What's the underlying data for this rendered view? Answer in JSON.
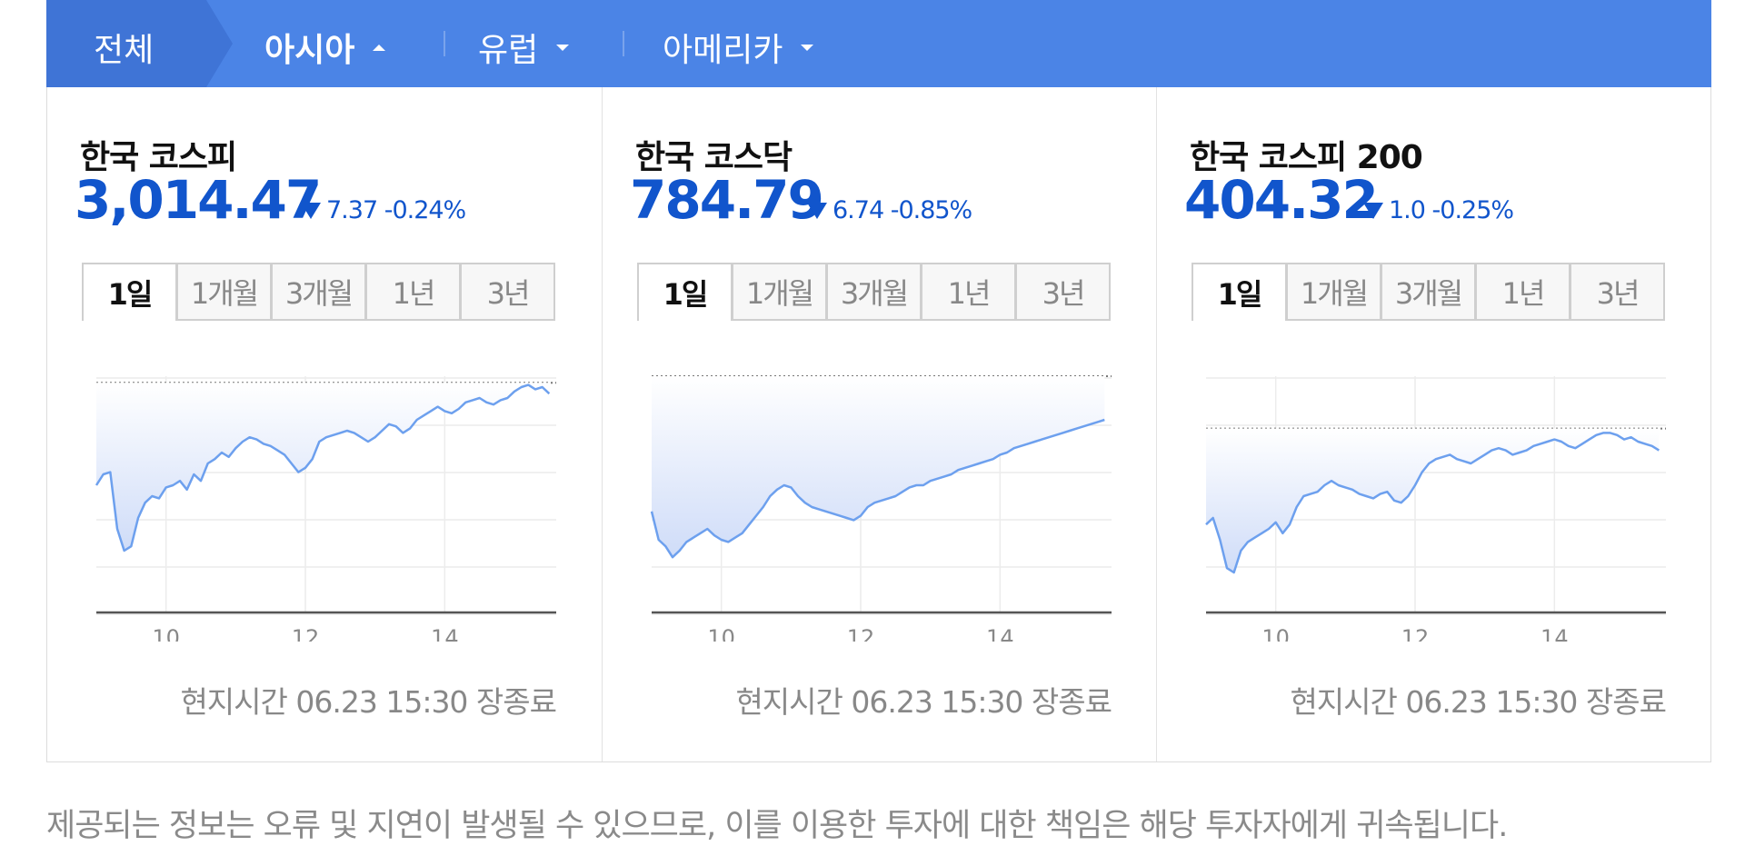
{
  "tabs": {
    "all": "전체",
    "items": [
      {
        "label": "아시아",
        "active": true,
        "caret": "up"
      },
      {
        "label": "유럽",
        "active": false,
        "caret": "down"
      },
      {
        "label": "아메리카",
        "active": false,
        "caret": "down"
      }
    ]
  },
  "colors": {
    "accent": "#4b84e6",
    "value": "#1155cc",
    "line": "#6da0ee"
  },
  "panels": [
    {
      "name": "한국 코스피",
      "value": "3,014.47",
      "change": "7.37 -0.24%",
      "direction": "down-icon",
      "periods": [
        "1일",
        "1개월",
        "3개월",
        "1년",
        "3년"
      ],
      "footer": "현지시간 06.23 15:30 장종료"
    },
    {
      "name": "한국 코스닥",
      "value": "784.79",
      "change": "6.74 -0.85%",
      "direction": "down-icon",
      "periods": [
        "1일",
        "1개월",
        "3개월",
        "1년",
        "3년"
      ],
      "footer": "현지시간 06.23 15:30 장종료"
    },
    {
      "name": "한국 코스피 200",
      "value": "404.32",
      "change": "1.0 -0.25%",
      "direction": "down-icon",
      "periods": [
        "1일",
        "1개월",
        "3개월",
        "1년",
        "3년"
      ],
      "footer": "현지시간 06.23 15:30 장종료"
    }
  ],
  "chart_data": [
    {
      "type": "line",
      "x_ticks": [
        "10",
        "12",
        "14"
      ],
      "xlim": [
        9,
        15.6
      ],
      "ylim": [
        0,
        1
      ],
      "grid": true,
      "prev_close_level": 0.97,
      "x": [
        9.0,
        9.1,
        9.2,
        9.3,
        9.4,
        9.5,
        9.6,
        9.7,
        9.8,
        9.9,
        10.0,
        10.1,
        10.2,
        10.3,
        10.4,
        10.5,
        10.6,
        10.7,
        10.8,
        10.9,
        11.0,
        11.1,
        11.2,
        11.3,
        11.4,
        11.5,
        11.6,
        11.7,
        11.8,
        11.9,
        12.0,
        12.1,
        12.2,
        12.3,
        12.4,
        12.5,
        12.6,
        12.7,
        12.8,
        12.9,
        13.0,
        13.1,
        13.2,
        13.3,
        13.4,
        13.5,
        13.6,
        13.7,
        13.8,
        13.9,
        14.0,
        14.1,
        14.2,
        14.3,
        14.4,
        14.5,
        14.6,
        14.7,
        14.8,
        14.9,
        15.0,
        15.1,
        15.2,
        15.3,
        15.4,
        15.5
      ],
      "y": [
        0.5,
        0.55,
        0.56,
        0.3,
        0.2,
        0.22,
        0.35,
        0.42,
        0.45,
        0.44,
        0.49,
        0.5,
        0.52,
        0.48,
        0.55,
        0.52,
        0.6,
        0.62,
        0.65,
        0.63,
        0.67,
        0.7,
        0.72,
        0.71,
        0.69,
        0.68,
        0.66,
        0.64,
        0.6,
        0.56,
        0.58,
        0.62,
        0.7,
        0.72,
        0.73,
        0.74,
        0.75,
        0.74,
        0.72,
        0.7,
        0.72,
        0.75,
        0.78,
        0.77,
        0.74,
        0.76,
        0.8,
        0.82,
        0.84,
        0.86,
        0.84,
        0.83,
        0.85,
        0.88,
        0.89,
        0.9,
        0.88,
        0.87,
        0.89,
        0.9,
        0.93,
        0.95,
        0.96,
        0.94,
        0.95,
        0.92
      ]
    },
    {
      "type": "line",
      "x_ticks": [
        "10",
        "12",
        "14"
      ],
      "xlim": [
        9,
        15.6
      ],
      "ylim": [
        0,
        1
      ],
      "grid": true,
      "prev_close_level": 1.0,
      "x": [
        9.0,
        9.1,
        9.2,
        9.3,
        9.4,
        9.5,
        9.6,
        9.7,
        9.8,
        9.9,
        10.0,
        10.1,
        10.2,
        10.3,
        10.4,
        10.5,
        10.6,
        10.7,
        10.8,
        10.9,
        11.0,
        11.1,
        11.2,
        11.3,
        11.4,
        11.5,
        11.6,
        11.7,
        11.8,
        11.9,
        12.0,
        12.1,
        12.2,
        12.3,
        12.4,
        12.5,
        12.6,
        12.7,
        12.8,
        12.9,
        13.0,
        13.1,
        13.2,
        13.3,
        13.4,
        13.5,
        13.6,
        13.7,
        13.8,
        13.9,
        14.0,
        14.1,
        14.2,
        14.3,
        14.4,
        14.5,
        14.6,
        14.7,
        14.8,
        14.9,
        15.0,
        15.1,
        15.2,
        15.3,
        15.4,
        15.5
      ],
      "y": [
        0.38,
        0.25,
        0.22,
        0.17,
        0.2,
        0.24,
        0.26,
        0.28,
        0.3,
        0.27,
        0.25,
        0.24,
        0.26,
        0.28,
        0.32,
        0.36,
        0.4,
        0.45,
        0.48,
        0.5,
        0.49,
        0.45,
        0.42,
        0.4,
        0.39,
        0.38,
        0.37,
        0.36,
        0.35,
        0.34,
        0.36,
        0.4,
        0.42,
        0.43,
        0.44,
        0.45,
        0.47,
        0.49,
        0.5,
        0.5,
        0.52,
        0.53,
        0.54,
        0.55,
        0.57,
        0.58,
        0.59,
        0.6,
        0.61,
        0.62,
        0.64,
        0.65,
        0.67,
        0.68,
        0.69,
        0.7,
        0.71,
        0.72,
        0.73,
        0.74,
        0.75,
        0.76,
        0.77,
        0.78,
        0.79,
        0.8
      ]
    },
    {
      "type": "line",
      "x_ticks": [
        "10",
        "12",
        "14"
      ],
      "xlim": [
        9,
        15.6
      ],
      "ylim": [
        0,
        1
      ],
      "grid": true,
      "prev_close_level": 0.76,
      "x": [
        9.0,
        9.1,
        9.2,
        9.3,
        9.4,
        9.5,
        9.6,
        9.7,
        9.8,
        9.9,
        10.0,
        10.1,
        10.2,
        10.3,
        10.4,
        10.5,
        10.6,
        10.7,
        10.8,
        10.9,
        11.0,
        11.1,
        11.2,
        11.3,
        11.4,
        11.5,
        11.6,
        11.7,
        11.8,
        11.9,
        12.0,
        12.1,
        12.2,
        12.3,
        12.4,
        12.5,
        12.6,
        12.7,
        12.8,
        12.9,
        13.0,
        13.1,
        13.2,
        13.3,
        13.4,
        13.5,
        13.6,
        13.7,
        13.8,
        13.9,
        14.0,
        14.1,
        14.2,
        14.3,
        14.4,
        14.5,
        14.6,
        14.7,
        14.8,
        14.9,
        15.0,
        15.1,
        15.2,
        15.3,
        15.4,
        15.5
      ],
      "y": [
        0.32,
        0.35,
        0.25,
        0.12,
        0.1,
        0.2,
        0.24,
        0.26,
        0.28,
        0.3,
        0.33,
        0.28,
        0.32,
        0.4,
        0.45,
        0.46,
        0.47,
        0.5,
        0.52,
        0.5,
        0.49,
        0.48,
        0.46,
        0.45,
        0.44,
        0.46,
        0.47,
        0.43,
        0.42,
        0.45,
        0.5,
        0.56,
        0.6,
        0.62,
        0.63,
        0.64,
        0.62,
        0.61,
        0.6,
        0.62,
        0.64,
        0.66,
        0.67,
        0.66,
        0.64,
        0.65,
        0.66,
        0.68,
        0.69,
        0.7,
        0.71,
        0.7,
        0.68,
        0.67,
        0.69,
        0.71,
        0.73,
        0.74,
        0.74,
        0.73,
        0.71,
        0.72,
        0.7,
        0.69,
        0.68,
        0.66
      ]
    }
  ],
  "disclaimer": "제공되는 정보는 오류 및 지연이 발생될 수 있으므로, 이를 이용한 투자에 대한 책임은 해당 투자자에게 귀속됩니다."
}
